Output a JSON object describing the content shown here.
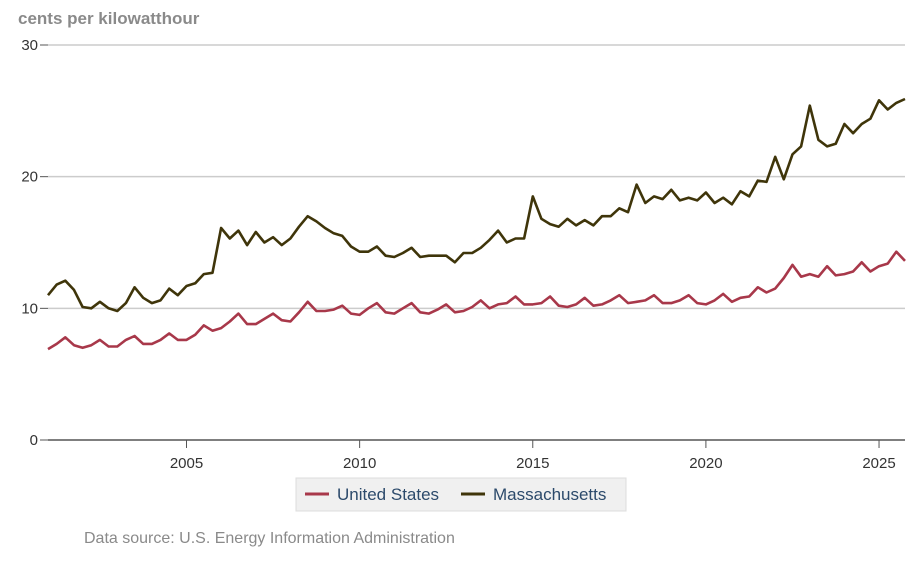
{
  "unit_label": "cents per kilowatthour",
  "source": "Data source: U.S. Energy Information Administration",
  "colors": {
    "united_states": "#a8384a",
    "massachusetts": "#3f350a",
    "grid": "#cccccc",
    "axis": "#555555"
  },
  "chart_data": {
    "type": "line",
    "title": "",
    "xlabel": "",
    "ylabel": "cents per kilowatthour",
    "xlim": [
      2001.0,
      2025.75
    ],
    "ylim": [
      0,
      30
    ],
    "yticks": [
      0,
      10,
      20,
      30
    ],
    "xticks": [
      2005,
      2010,
      2015,
      2020,
      2025
    ],
    "legend_position": "bottom-center",
    "series": [
      {
        "name": "United States",
        "color": "#a8384a",
        "x": [
          2001.0,
          2001.25,
          2001.5,
          2001.75,
          2002.0,
          2002.25,
          2002.5,
          2002.75,
          2003.0,
          2003.25,
          2003.5,
          2003.75,
          2004.0,
          2004.25,
          2004.5,
          2004.75,
          2005.0,
          2005.25,
          2005.5,
          2005.75,
          2006.0,
          2006.25,
          2006.5,
          2006.75,
          2007.0,
          2007.25,
          2007.5,
          2007.75,
          2008.0,
          2008.25,
          2008.5,
          2008.75,
          2009.0,
          2009.25,
          2009.5,
          2009.75,
          2010.0,
          2010.25,
          2010.5,
          2010.75,
          2011.0,
          2011.25,
          2011.5,
          2011.75,
          2012.0,
          2012.25,
          2012.5,
          2012.75,
          2013.0,
          2013.25,
          2013.5,
          2013.75,
          2014.0,
          2014.25,
          2014.5,
          2014.75,
          2015.0,
          2015.25,
          2015.5,
          2015.75,
          2016.0,
          2016.25,
          2016.5,
          2016.75,
          2017.0,
          2017.25,
          2017.5,
          2017.75,
          2018.0,
          2018.25,
          2018.5,
          2018.75,
          2019.0,
          2019.25,
          2019.5,
          2019.75,
          2020.0,
          2020.25,
          2020.5,
          2020.75,
          2021.0,
          2021.25,
          2021.5,
          2021.75,
          2022.0,
          2022.25,
          2022.5,
          2022.75,
          2023.0,
          2023.25,
          2023.5,
          2023.75,
          2024.0,
          2024.25,
          2024.5,
          2024.75,
          2025.0,
          2025.25,
          2025.5,
          2025.75
        ],
        "values": [
          6.9,
          7.3,
          7.8,
          7.2,
          7.0,
          7.2,
          7.6,
          7.1,
          7.1,
          7.6,
          7.9,
          7.3,
          7.3,
          7.6,
          8.1,
          7.6,
          7.6,
          8.0,
          8.7,
          8.3,
          8.5,
          9.0,
          9.6,
          8.8,
          8.8,
          9.2,
          9.6,
          9.1,
          9.0,
          9.7,
          10.5,
          9.8,
          9.8,
          9.9,
          10.2,
          9.6,
          9.5,
          10.0,
          10.4,
          9.7,
          9.6,
          10.0,
          10.4,
          9.7,
          9.6,
          9.9,
          10.3,
          9.7,
          9.8,
          10.1,
          10.6,
          10.0,
          10.3,
          10.4,
          10.9,
          10.3,
          10.3,
          10.4,
          10.9,
          10.2,
          10.1,
          10.3,
          10.8,
          10.2,
          10.3,
          10.6,
          11.0,
          10.4,
          10.5,
          10.6,
          11.0,
          10.4,
          10.4,
          10.6,
          11.0,
          10.4,
          10.3,
          10.6,
          11.1,
          10.5,
          10.8,
          10.9,
          11.6,
          11.2,
          11.5,
          12.3,
          13.3,
          12.4,
          12.6,
          12.4,
          13.2,
          12.5,
          12.6,
          12.8,
          13.5,
          12.8,
          13.2,
          13.4,
          14.3,
          13.6
        ]
      },
      {
        "name": "Massachusetts",
        "color": "#3f350a",
        "x": [
          2001.0,
          2001.25,
          2001.5,
          2001.75,
          2002.0,
          2002.25,
          2002.5,
          2002.75,
          2003.0,
          2003.25,
          2003.5,
          2003.75,
          2004.0,
          2004.25,
          2004.5,
          2004.75,
          2005.0,
          2005.25,
          2005.5,
          2005.75,
          2006.0,
          2006.25,
          2006.5,
          2006.75,
          2007.0,
          2007.25,
          2007.5,
          2007.75,
          2008.0,
          2008.25,
          2008.5,
          2008.75,
          2009.0,
          2009.25,
          2009.5,
          2009.75,
          2010.0,
          2010.25,
          2010.5,
          2010.75,
          2011.0,
          2011.25,
          2011.5,
          2011.75,
          2012.0,
          2012.25,
          2012.5,
          2012.75,
          2013.0,
          2013.25,
          2013.5,
          2013.75,
          2014.0,
          2014.25,
          2014.5,
          2014.75,
          2015.0,
          2015.25,
          2015.5,
          2015.75,
          2016.0,
          2016.25,
          2016.5,
          2016.75,
          2017.0,
          2017.25,
          2017.5,
          2017.75,
          2018.0,
          2018.25,
          2018.5,
          2018.75,
          2019.0,
          2019.25,
          2019.5,
          2019.75,
          2020.0,
          2020.25,
          2020.5,
          2020.75,
          2021.0,
          2021.25,
          2021.5,
          2021.75,
          2022.0,
          2022.25,
          2022.5,
          2022.75,
          2023.0,
          2023.25,
          2023.5,
          2023.75,
          2024.0,
          2024.25,
          2024.5,
          2024.75,
          2025.0,
          2025.25,
          2025.5,
          2025.75
        ],
        "values": [
          11.0,
          11.8,
          12.1,
          11.4,
          10.1,
          10.0,
          10.5,
          10.0,
          9.8,
          10.4,
          11.6,
          10.8,
          10.4,
          10.6,
          11.5,
          11.0,
          11.7,
          11.9,
          12.6,
          12.7,
          16.1,
          15.3,
          15.9,
          14.8,
          15.8,
          15.0,
          15.4,
          14.8,
          15.3,
          16.2,
          17.0,
          16.6,
          16.1,
          15.7,
          15.5,
          14.7,
          14.3,
          14.3,
          14.7,
          14.0,
          13.9,
          14.2,
          14.6,
          13.9,
          14.0,
          14.0,
          14.0,
          13.5,
          14.2,
          14.2,
          14.6,
          15.2,
          15.9,
          15.0,
          15.3,
          15.3,
          18.5,
          16.8,
          16.4,
          16.2,
          16.8,
          16.3,
          16.7,
          16.3,
          17.0,
          17.0,
          17.6,
          17.3,
          19.4,
          18.0,
          18.5,
          18.3,
          19.0,
          18.2,
          18.4,
          18.2,
          18.8,
          18.0,
          18.4,
          17.9,
          18.9,
          18.5,
          19.7,
          19.6,
          21.5,
          19.8,
          21.7,
          22.3,
          25.4,
          22.8,
          22.3,
          22.5,
          24.0,
          23.3,
          24.0,
          24.4,
          25.8,
          25.1,
          25.6,
          25.9
        ]
      }
    ]
  }
}
